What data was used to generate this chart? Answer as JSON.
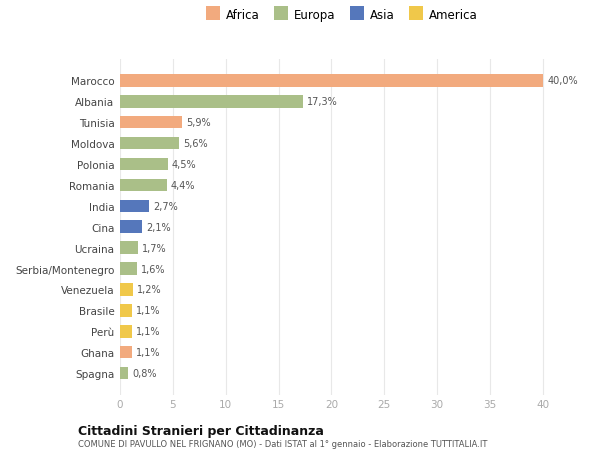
{
  "countries": [
    "Marocco",
    "Albania",
    "Tunisia",
    "Moldova",
    "Polonia",
    "Romania",
    "India",
    "Cina",
    "Ucraina",
    "Serbia/Montenegro",
    "Venezuela",
    "Brasile",
    "Perù",
    "Ghana",
    "Spagna"
  ],
  "values": [
    40.0,
    17.3,
    5.9,
    5.6,
    4.5,
    4.4,
    2.7,
    2.1,
    1.7,
    1.6,
    1.2,
    1.1,
    1.1,
    1.1,
    0.8
  ],
  "labels": [
    "40,0%",
    "17,3%",
    "5,9%",
    "5,6%",
    "4,5%",
    "4,4%",
    "2,7%",
    "2,1%",
    "1,7%",
    "1,6%",
    "1,2%",
    "1,1%",
    "1,1%",
    "1,1%",
    "0,8%"
  ],
  "continents": [
    "Africa",
    "Europa",
    "Africa",
    "Europa",
    "Europa",
    "Europa",
    "Asia",
    "Asia",
    "Europa",
    "Europa",
    "America",
    "America",
    "America",
    "Africa",
    "Europa"
  ],
  "colors": {
    "Africa": "#F2AA7E",
    "Europa": "#AABF88",
    "Asia": "#5577BB",
    "America": "#F0C84A"
  },
  "title": "Cittadini Stranieri per Cittadinanza",
  "subtitle": "COMUNE DI PAVULLO NEL FRIGNANO (MO) - Dati ISTAT al 1° gennaio - Elaborazione TUTTITALIA.IT",
  "xlim": [
    0,
    42
  ],
  "xticks": [
    0,
    5,
    10,
    15,
    20,
    25,
    30,
    35,
    40
  ],
  "background_color": "#ffffff",
  "bar_background": "#ffffff",
  "grid_color": "#e8e8e8"
}
